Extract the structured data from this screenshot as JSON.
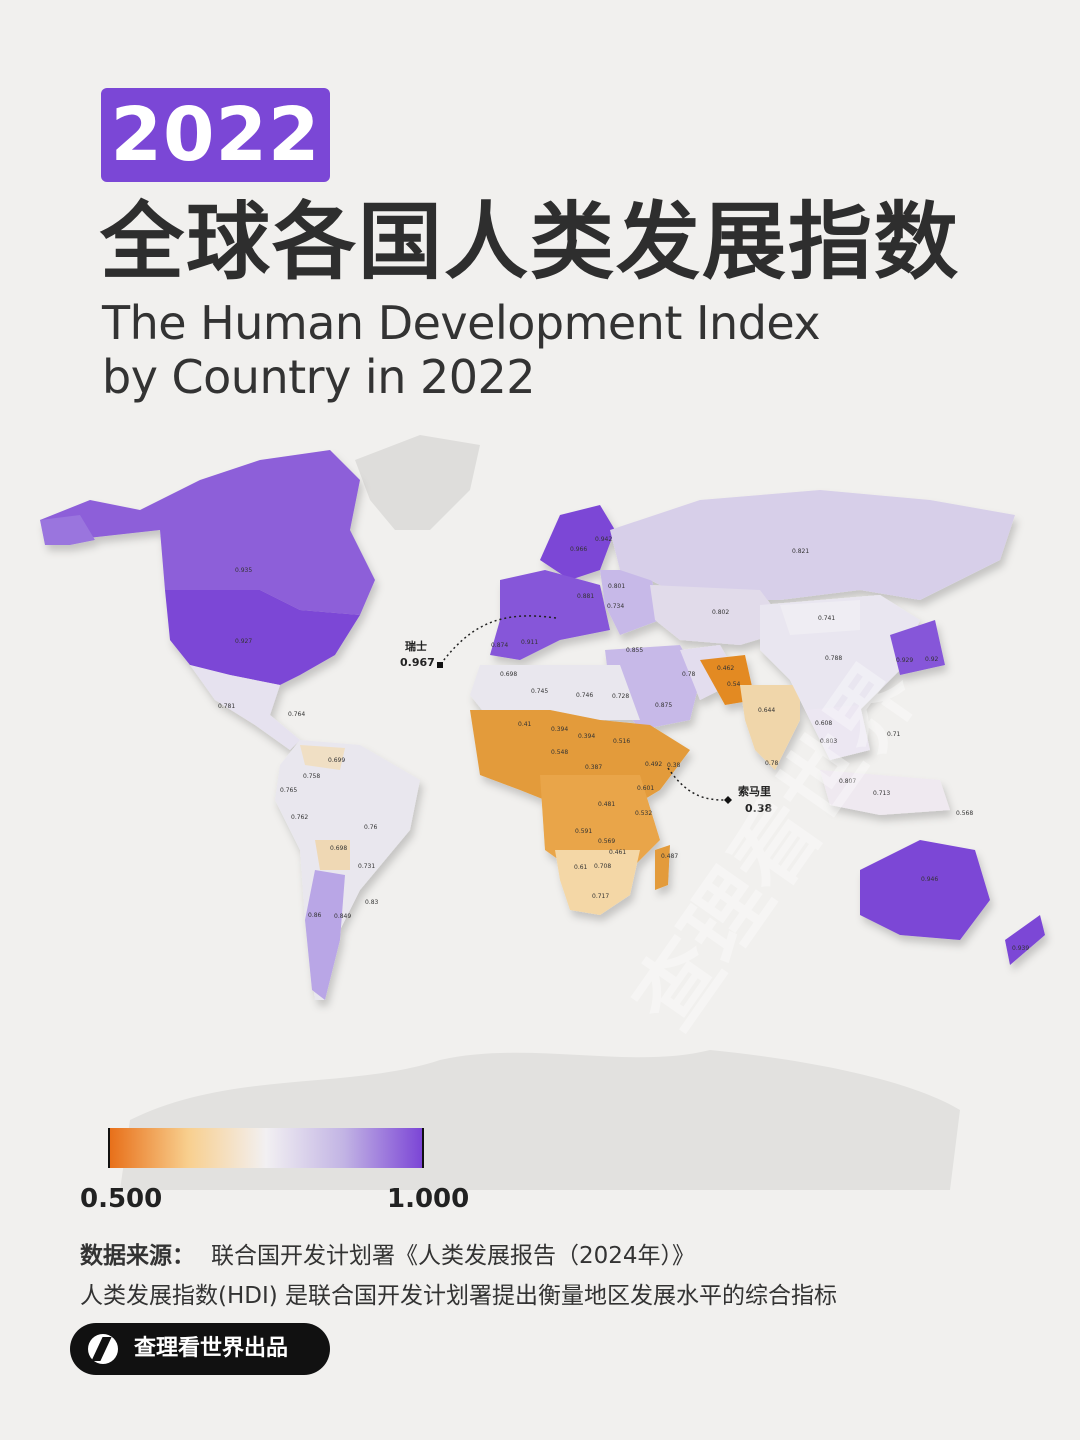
{
  "header": {
    "year": "2022",
    "title_zh": "全球各国人类发展指数",
    "title_en_line1": "The Human Development Index",
    "title_en_line2": "by Country in 2022"
  },
  "callouts": {
    "switzerland": {
      "name": "瑞士",
      "value": "0.967"
    },
    "somalia": {
      "name": "索马里",
      "value": "0.38"
    }
  },
  "legend": {
    "min_label": "0.500",
    "max_label": "1.000",
    "colors": [
      "#e8701a",
      "#f8cf8e",
      "#f2f0f2",
      "#c2b4e4",
      "#7c46d6"
    ]
  },
  "colors": {
    "high": "#7b47d6",
    "high_mid": "#9a74de",
    "mid": "#cfc4e8",
    "neutral": "#e9e7ee",
    "low_mid": "#f0c98a",
    "low": "#e39b3a",
    "lowest": "#e07f1e"
  },
  "footer": {
    "source_label": "数据来源：",
    "source_text": "联合国开发计划署《人类发展报告（2024年）》",
    "description": "人类发展指数(HDI) 是联合国开发计划署提出衡量地区发展水平的综合指标",
    "brand": "查理看世界出品"
  },
  "map_values": [
    {
      "region": "Canada",
      "value": "0.935"
    },
    {
      "region": "United States",
      "value": "0.927"
    },
    {
      "region": "Mexico",
      "value": "0.781"
    },
    {
      "region": "Cuba",
      "value": "0.764"
    },
    {
      "region": "Colombia",
      "value": "0.758"
    },
    {
      "region": "Venezuela",
      "value": "0.699"
    },
    {
      "region": "Ecuador",
      "value": "0.765"
    },
    {
      "region": "Peru",
      "value": "0.762"
    },
    {
      "region": "Brazil",
      "value": "0.76"
    },
    {
      "region": "Bolivia",
      "value": "0.698"
    },
    {
      "region": "Paraguay",
      "value": "0.731"
    },
    {
      "region": "Chile",
      "value": "0.86"
    },
    {
      "region": "Argentina",
      "value": "0.849"
    },
    {
      "region": "Uruguay",
      "value": "0.83"
    },
    {
      "region": "Russia",
      "value": "0.821"
    },
    {
      "region": "Kazakhstan",
      "value": "0.802"
    },
    {
      "region": "Mongolia",
      "value": "0.741"
    },
    {
      "region": "China",
      "value": "0.788"
    },
    {
      "region": "Japan",
      "value": "0.92"
    },
    {
      "region": "South Korea",
      "value": "0.929"
    },
    {
      "region": "India",
      "value": "0.644"
    },
    {
      "region": "Pakistan",
      "value": "0.54"
    },
    {
      "region": "Afghanistan",
      "value": "0.462"
    },
    {
      "region": "Iran",
      "value": "0.78"
    },
    {
      "region": "Turkey",
      "value": "0.855"
    },
    {
      "region": "Saudi Arabia",
      "value": "0.875"
    },
    {
      "region": "Egypt",
      "value": "0.728"
    },
    {
      "region": "Libya",
      "value": "0.746"
    },
    {
      "region": "Algeria",
      "value": "0.745"
    },
    {
      "region": "Morocco",
      "value": "0.698"
    },
    {
      "region": "Spain",
      "value": "0.911"
    },
    {
      "region": "Portugal",
      "value": "0.874"
    },
    {
      "region": "Norway",
      "value": "0.966"
    },
    {
      "region": "Finland",
      "value": "0.942"
    },
    {
      "region": "Ukraine",
      "value": "0.734"
    },
    {
      "region": "Belarus",
      "value": "0.801"
    },
    {
      "region": "Poland",
      "value": "0.881"
    },
    {
      "region": "Mali",
      "value": "0.41"
    },
    {
      "region": "Niger",
      "value": "0.394"
    },
    {
      "region": "Chad",
      "value": "0.394"
    },
    {
      "region": "Sudan",
      "value": "0.516"
    },
    {
      "region": "Ethiopia",
      "value": "0.492"
    },
    {
      "region": "Somalia",
      "value": "0.38"
    },
    {
      "region": "Nigeria",
      "value": "0.548"
    },
    {
      "region": "Central African Republic",
      "value": "0.387"
    },
    {
      "region": "DR Congo",
      "value": "0.481"
    },
    {
      "region": "Kenya",
      "value": "0.601"
    },
    {
      "region": "Tanzania",
      "value": "0.532"
    },
    {
      "region": "Angola",
      "value": "0.591"
    },
    {
      "region": "Zambia",
      "value": "0.569"
    },
    {
      "region": "Mozambique",
      "value": "0.461"
    },
    {
      "region": "Madagascar",
      "value": "0.487"
    },
    {
      "region": "Namibia",
      "value": "0.61"
    },
    {
      "region": "Botswana",
      "value": "0.708"
    },
    {
      "region": "South Africa",
      "value": "0.717"
    },
    {
      "region": "Australia",
      "value": "0.946"
    },
    {
      "region": "New Zealand",
      "value": "0.939"
    },
    {
      "region": "Indonesia",
      "value": "0.713"
    },
    {
      "region": "Philippines",
      "value": "0.71"
    },
    {
      "region": "Thailand",
      "value": "0.803"
    },
    {
      "region": "Malaysia",
      "value": "0.807"
    },
    {
      "region": "Papua New Guinea",
      "value": "0.568"
    },
    {
      "region": "Sri Lanka",
      "value": "0.78"
    },
    {
      "region": "Myanmar",
      "value": "0.608"
    }
  ]
}
